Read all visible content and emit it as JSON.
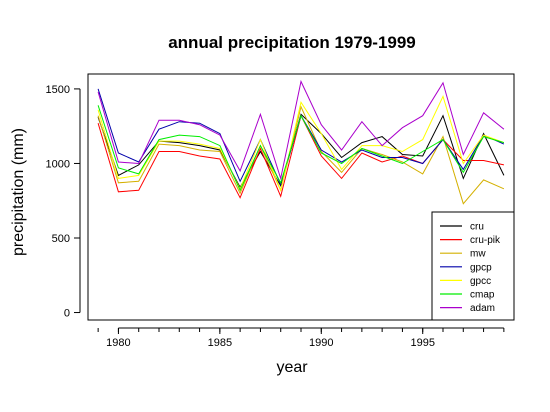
{
  "chart_data": {
    "type": "line",
    "title": "annual precipitation 1979-1999",
    "xlabel": "year",
    "ylabel": "precipitation (mm)",
    "xlim": [
      1978.5,
      1999.5
    ],
    "ylim": [
      -50,
      1600
    ],
    "x_ticks": [
      1980,
      1985,
      1990,
      1995
    ],
    "y_ticks": [
      0,
      500,
      1000,
      1500
    ],
    "legend_position": "bottom-right",
    "grid": false,
    "x": [
      1979,
      1980,
      1981,
      1982,
      1983,
      1984,
      1985,
      1986,
      1987,
      1988,
      1989,
      1990,
      1991,
      1992,
      1993,
      1994,
      1995,
      1996,
      1997,
      1998,
      1999
    ],
    "series": [
      {
        "name": "cru",
        "color": "#000000",
        "values": [
          1310,
          920,
          990,
          1150,
          1140,
          1120,
          1090,
          840,
          1080,
          850,
          1330,
          1200,
          1040,
          1140,
          1180,
          1060,
          1050,
          1320,
          900,
          1200,
          920
        ]
      },
      {
        "name": "cru-pik",
        "color": "#ff0000",
        "values": [
          1270,
          810,
          820,
          1080,
          1080,
          1050,
          1030,
          770,
          1100,
          780,
          1320,
          1050,
          900,
          1070,
          1010,
          1050,
          1000,
          1160,
          1020,
          1020,
          990
        ]
      },
      {
        "name": "mw",
        "color": "#d4b000",
        "values": [
          1320,
          870,
          880,
          1130,
          1120,
          1090,
          1080,
          800,
          1120,
          820,
          1380,
          1080,
          940,
          1100,
          1060,
          1010,
          930,
          1180,
          730,
          890,
          830
        ]
      },
      {
        "name": "gpcp",
        "color": "#0000aa",
        "values": [
          1500,
          1070,
          1010,
          1230,
          1280,
          1270,
          1200,
          880,
          1160,
          860,
          1320,
          1090,
          1010,
          1090,
          1040,
          1040,
          1000,
          1160,
          960,
          1190,
          1130
        ]
      },
      {
        "name": "gpcc",
        "color": "#ffff00",
        "values": [
          1360,
          900,
          920,
          1150,
          1150,
          1130,
          1100,
          830,
          1160,
          820,
          1410,
          1200,
          960,
          1120,
          1120,
          1080,
          1160,
          1450,
          1000,
          1190,
          1140
        ]
      },
      {
        "name": "cmap",
        "color": "#00ee00",
        "values": [
          1390,
          970,
          930,
          1160,
          1190,
          1180,
          1120,
          820,
          1120,
          870,
          1320,
          1070,
          1000,
          1100,
          1050,
          1000,
          1080,
          1160,
          940,
          1180,
          1140
        ]
      },
      {
        "name": "adam",
        "color": "#aa00cc",
        "values": [
          1480,
          1010,
          1000,
          1290,
          1290,
          1260,
          1190,
          950,
          1330,
          900,
          1550,
          1260,
          1090,
          1280,
          1120,
          1240,
          1320,
          1540,
          1060,
          1340,
          1230
        ]
      }
    ]
  }
}
